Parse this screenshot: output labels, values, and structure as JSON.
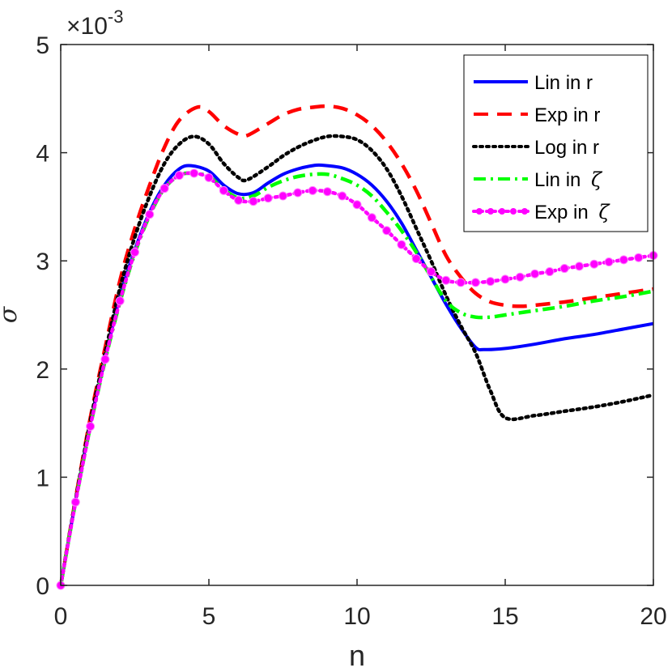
{
  "chart_data": {
    "type": "line",
    "title": "",
    "xlabel": "n",
    "ylabel": "σ",
    "y_exponent_label": "×10",
    "y_exponent_power": "-3",
    "xlim": [
      0,
      20
    ],
    "ylim": [
      0,
      5
    ],
    "xticks": [
      0,
      5,
      10,
      15,
      20
    ],
    "yticks": [
      0,
      1,
      2,
      3,
      4,
      5
    ],
    "grid": false,
    "legend_position": "top-right",
    "series": [
      {
        "name": "Lin in r",
        "legend_main": "Lin in r",
        "legend_symbol": "",
        "color": "#0000ff",
        "style": "solid",
        "x": [
          0,
          0.5,
          1,
          1.5,
          2,
          2.5,
          3,
          3.5,
          4,
          4.4,
          5,
          5.5,
          6,
          6.5,
          7,
          7.5,
          8,
          8.5,
          8.8,
          9.5,
          10,
          10.5,
          11,
          11.5,
          12,
          12.5,
          13,
          13.5,
          14,
          14.3,
          15,
          16,
          17,
          18,
          19,
          20
        ],
        "y": [
          0,
          0.78,
          1.5,
          2.1,
          2.67,
          3.1,
          3.45,
          3.7,
          3.85,
          3.88,
          3.83,
          3.7,
          3.62,
          3.63,
          3.72,
          3.8,
          3.85,
          3.88,
          3.885,
          3.86,
          3.8,
          3.7,
          3.55,
          3.35,
          3.1,
          2.85,
          2.6,
          2.38,
          2.2,
          2.18,
          2.19,
          2.23,
          2.28,
          2.32,
          2.37,
          2.42
        ]
      },
      {
        "name": "Exp in r",
        "legend_main": "Exp in r",
        "legend_symbol": "",
        "color": "#ff0000",
        "style": "dashed",
        "x": [
          0,
          0.5,
          1,
          1.5,
          2,
          2.5,
          3,
          3.5,
          4,
          4.6,
          5,
          5.5,
          6,
          6.3,
          7,
          7.5,
          8,
          8.5,
          9,
          9.5,
          10,
          10.5,
          11,
          11.5,
          12,
          12.5,
          13,
          13.5,
          14,
          14.5,
          15,
          15.5,
          16,
          17,
          18,
          19,
          20
        ],
        "y": [
          0,
          0.8,
          1.55,
          2.2,
          2.82,
          3.3,
          3.7,
          4.05,
          4.3,
          4.42,
          4.38,
          4.25,
          4.17,
          4.16,
          4.27,
          4.35,
          4.4,
          4.42,
          4.43,
          4.41,
          4.35,
          4.25,
          4.1,
          3.9,
          3.65,
          3.35,
          3.05,
          2.85,
          2.7,
          2.62,
          2.59,
          2.58,
          2.59,
          2.62,
          2.66,
          2.7,
          2.74
        ]
      },
      {
        "name": "Log in r",
        "legend_main": "Log in r",
        "legend_symbol": "",
        "color": "#000000",
        "style": "dotted",
        "x": [
          0,
          0.5,
          1,
          1.5,
          2,
          2.5,
          3,
          3.5,
          4,
          4.5,
          5,
          5.5,
          6,
          6.3,
          7,
          7.5,
          8,
          8.5,
          9,
          9.5,
          10,
          10.5,
          11,
          11.5,
          12,
          12.5,
          13,
          13.5,
          14,
          14.5,
          15,
          16,
          17,
          18,
          19,
          20
        ],
        "y": [
          0,
          0.79,
          1.52,
          2.15,
          2.75,
          3.22,
          3.6,
          3.9,
          4.08,
          4.15,
          4.08,
          3.9,
          3.77,
          3.75,
          3.87,
          3.97,
          4.05,
          4.11,
          4.15,
          4.15,
          4.12,
          4.02,
          3.85,
          3.6,
          3.3,
          3.0,
          2.68,
          2.4,
          2.15,
          1.8,
          1.55,
          1.57,
          1.61,
          1.65,
          1.7,
          1.76
        ]
      },
      {
        "name": "Lin in ζ",
        "legend_main": "Lin in ",
        "legend_symbol": "ζ",
        "color": "#00ff00",
        "style": "dashdot",
        "x": [
          0,
          0.5,
          1,
          1.5,
          2,
          2.5,
          3,
          3.5,
          4,
          4.4,
          5,
          5.5,
          6,
          6.5,
          7,
          7.5,
          8,
          8.5,
          9,
          9.5,
          10,
          10.5,
          11,
          11.5,
          12,
          12.5,
          13,
          13.5,
          14,
          14.5,
          15,
          16,
          17,
          18,
          19,
          20
        ],
        "y": [
          0,
          0.77,
          1.47,
          2.08,
          2.62,
          3.07,
          3.42,
          3.67,
          3.79,
          3.81,
          3.78,
          3.66,
          3.58,
          3.6,
          3.68,
          3.74,
          3.78,
          3.8,
          3.8,
          3.76,
          3.7,
          3.6,
          3.45,
          3.28,
          3.08,
          2.85,
          2.63,
          2.52,
          2.48,
          2.48,
          2.5,
          2.54,
          2.58,
          2.63,
          2.67,
          2.72
        ]
      },
      {
        "name": "Exp in ζ",
        "legend_main": "Exp in ",
        "legend_symbol": "ζ",
        "color": "#ff00ff",
        "style": "dotted-marker",
        "x": [
          0,
          0.5,
          1,
          1.5,
          2,
          2.5,
          3,
          3.5,
          4,
          4.5,
          5,
          5.5,
          6,
          6.5,
          7,
          7.5,
          8,
          8.5,
          9,
          9.5,
          10,
          10.5,
          11,
          11.5,
          12,
          12.5,
          13,
          13.5,
          14,
          14.5,
          15,
          15.5,
          16,
          16.5,
          17,
          17.5,
          18,
          18.5,
          19,
          19.5,
          20
        ],
        "y": [
          0,
          0.77,
          1.47,
          2.09,
          2.63,
          3.08,
          3.43,
          3.67,
          3.79,
          3.81,
          3.77,
          3.65,
          3.56,
          3.55,
          3.58,
          3.6,
          3.63,
          3.65,
          3.64,
          3.6,
          3.52,
          3.4,
          3.28,
          3.15,
          3.02,
          2.9,
          2.82,
          2.8,
          2.8,
          2.81,
          2.83,
          2.85,
          2.88,
          2.9,
          2.93,
          2.95,
          2.97,
          2.99,
          3.01,
          3.03,
          3.05
        ]
      }
    ]
  }
}
